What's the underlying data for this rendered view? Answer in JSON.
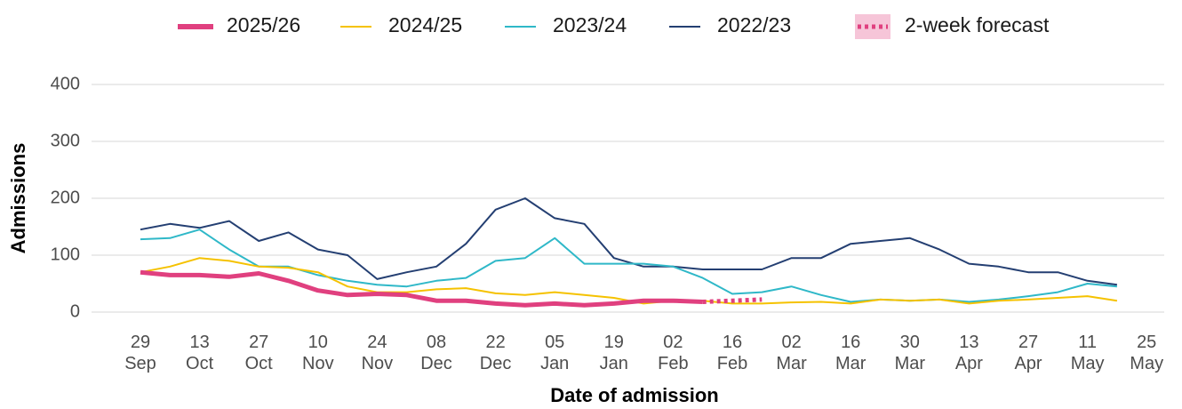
{
  "chart_data": {
    "type": "line",
    "x_label": "Date of admission",
    "y_label": "Admissions",
    "categories": [
      "29 Sep",
      null,
      "13 Oct",
      null,
      "27 Oct",
      null,
      "10 Nov",
      null,
      "24 Nov",
      null,
      "08 Dec",
      null,
      "22 Dec",
      null,
      "05 Jan",
      null,
      "19 Jan",
      null,
      "02 Feb",
      null,
      "16 Feb",
      null,
      "02 Mar",
      null,
      "16 Mar",
      null,
      "30 Mar",
      null,
      "13 Apr",
      null,
      "27 Apr",
      null,
      "11 May",
      null,
      "25 May"
    ],
    "ylim": [
      0,
      400
    ],
    "yticks": [
      0,
      100,
      200,
      300,
      400
    ],
    "grid": true,
    "series": [
      {
        "name": "2025/26",
        "color": "#e0407f",
        "values": [
          70,
          65,
          65,
          62,
          68,
          55,
          38,
          30,
          32,
          30,
          20,
          20,
          15,
          12,
          15,
          12,
          15,
          20,
          20,
          18,
          null,
          null,
          null,
          null,
          null,
          null,
          null,
          null,
          null,
          null,
          null,
          null,
          null,
          null,
          null
        ]
      },
      {
        "name": "2024/25",
        "color": "#f5c200",
        "values": [
          70,
          80,
          95,
          90,
          80,
          78,
          70,
          45,
          35,
          35,
          40,
          42,
          33,
          30,
          35,
          30,
          25,
          15,
          20,
          20,
          15,
          15,
          17,
          18,
          15,
          22,
          20,
          22,
          15,
          20,
          22,
          25,
          28,
          20,
          null
        ]
      },
      {
        "name": "2023/24",
        "color": "#2fb8c8",
        "values": [
          128,
          130,
          145,
          110,
          80,
          80,
          65,
          55,
          48,
          45,
          55,
          60,
          90,
          95,
          130,
          85,
          85,
          85,
          80,
          60,
          32,
          35,
          45,
          30,
          18,
          22,
          20,
          22,
          18,
          22,
          28,
          35,
          50,
          45,
          null
        ]
      },
      {
        "name": "2022/23",
        "color": "#243f72",
        "values": [
          145,
          155,
          148,
          160,
          125,
          140,
          110,
          100,
          58,
          70,
          80,
          120,
          180,
          200,
          165,
          155,
          95,
          80,
          80,
          75,
          75,
          75,
          95,
          95,
          120,
          125,
          130,
          110,
          85,
          80,
          70,
          70,
          55,
          48,
          null
        ]
      },
      {
        "name": "2-week forecast",
        "color": "#e0407f",
        "style": "dotted",
        "values": [
          null,
          null,
          null,
          null,
          null,
          null,
          null,
          null,
          null,
          null,
          null,
          null,
          null,
          null,
          null,
          null,
          null,
          null,
          null,
          18,
          20,
          22,
          null,
          null,
          null,
          null,
          null,
          null,
          null,
          null,
          null,
          null,
          null,
          null,
          null
        ]
      }
    ]
  }
}
